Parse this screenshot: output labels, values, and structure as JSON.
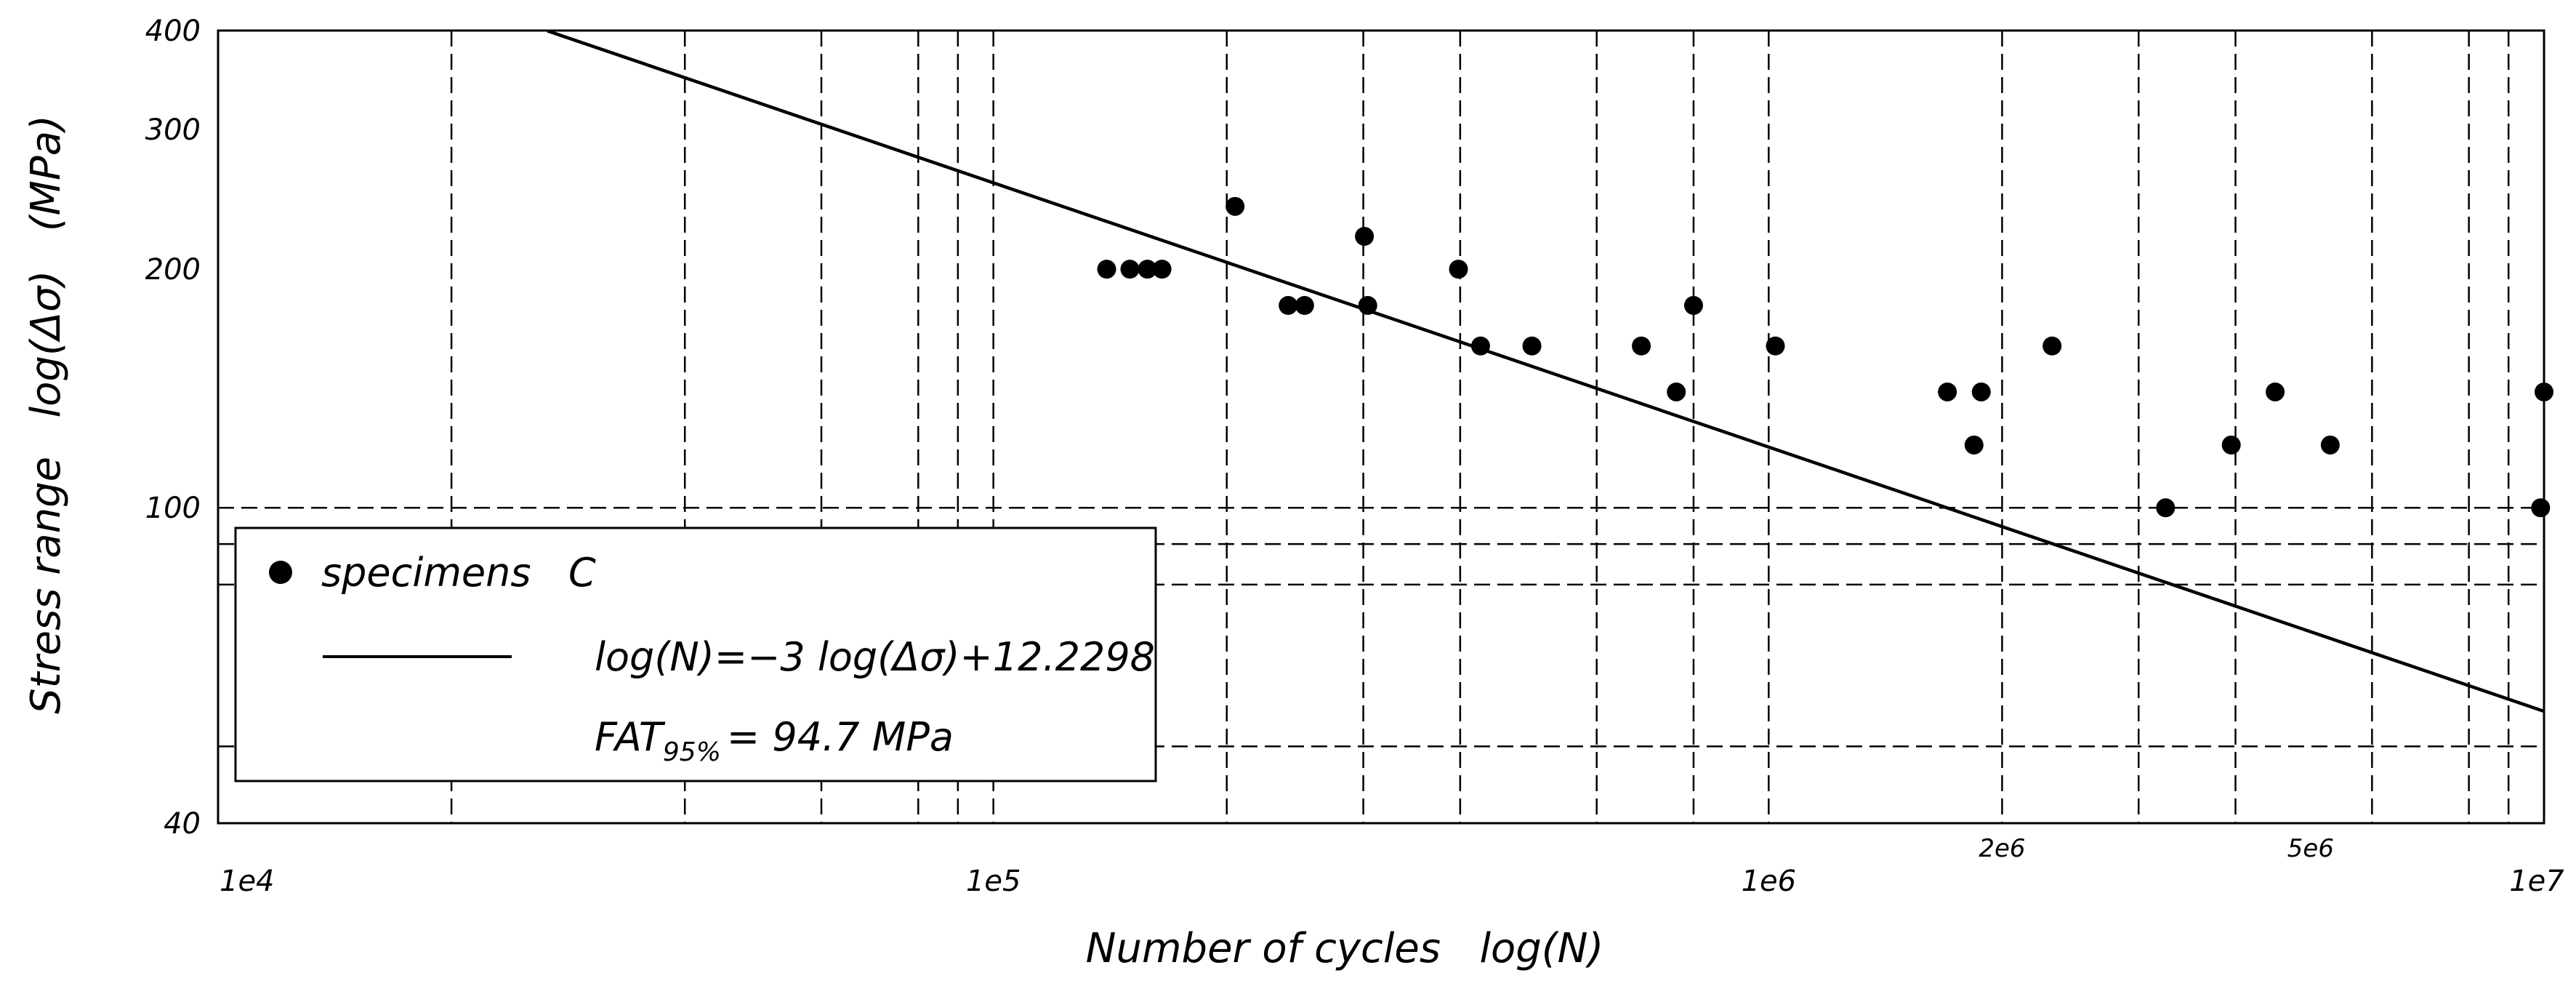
{
  "chart_data": {
    "type": "scatter",
    "x_scale": "log",
    "y_scale": "log",
    "xlim": [
      10000,
      10000000
    ],
    "ylim": [
      40,
      400
    ],
    "xlabel": "Number of cycles   log(N)",
    "ylabel": "Stress range   log(Δσ)   (MPa)",
    "x_tick_labels": [
      {
        "value": 10000,
        "label": "1e4"
      },
      {
        "value": 100000,
        "label": "1e5"
      },
      {
        "value": 1000000,
        "label": "1e6"
      },
      {
        "value": 2000000,
        "label": "2e6"
      },
      {
        "value": 5000000,
        "label": "5e6"
      },
      {
        "value": 10000000,
        "label": "1e7"
      }
    ],
    "y_tick_labels": [
      {
        "value": 400,
        "label": "400"
      },
      {
        "value": 300,
        "label": "300"
      },
      {
        "value": 200,
        "label": "200"
      },
      {
        "value": 100,
        "label": "100"
      },
      {
        "value": 40,
        "label": "40"
      }
    ],
    "x_gridlines": [
      20000,
      40000,
      60000,
      80000,
      90000,
      100000,
      200000,
      300000,
      400000,
      600000,
      800000,
      1000000,
      2000000,
      3000000,
      4000000,
      6000000,
      8000000,
      9000000
    ],
    "y_gridlines": [
      100,
      90,
      80,
      50
    ],
    "grid": true,
    "grid_style": "dashed",
    "legend": {
      "placement": "lower-left",
      "marker_label": "specimens   C",
      "line_label": "log(N)=−3 log(Δσ)+12.2298",
      "fat_main": "FAT",
      "fat_sub": "95%",
      "fat_value": "= 94.7 MPa"
    },
    "series": [
      {
        "name": "specimens   C",
        "type": "scatter",
        "color": "#000000",
        "points": [
          [
            140000,
            200
          ],
          [
            150000,
            200
          ],
          [
            158000,
            200
          ],
          [
            165000,
            200
          ],
          [
            205000,
            240
          ],
          [
            240000,
            180
          ],
          [
            252000,
            180
          ],
          [
            301000,
            220
          ],
          [
            304000,
            180
          ],
          [
            398000,
            200
          ],
          [
            425000,
            160
          ],
          [
            495000,
            160
          ],
          [
            685000,
            160
          ],
          [
            760000,
            140
          ],
          [
            800000,
            180
          ],
          [
            1020000,
            160
          ],
          [
            1700000,
            140
          ],
          [
            1840000,
            120
          ],
          [
            1880000,
            140
          ],
          [
            2320000,
            160
          ],
          [
            3250000,
            100
          ],
          [
            3950000,
            120
          ],
          [
            4500000,
            140
          ],
          [
            5300000,
            120
          ],
          [
            9900000,
            100
          ],
          [
            10000000,
            140
          ]
        ]
      },
      {
        "name": "log(N)=−3 log(Δσ)+12.2298",
        "type": "line",
        "color": "#000000",
        "slope": -3,
        "intercept": 12.2298,
        "x_range": [
          26600,
          10000000
        ]
      }
    ]
  }
}
